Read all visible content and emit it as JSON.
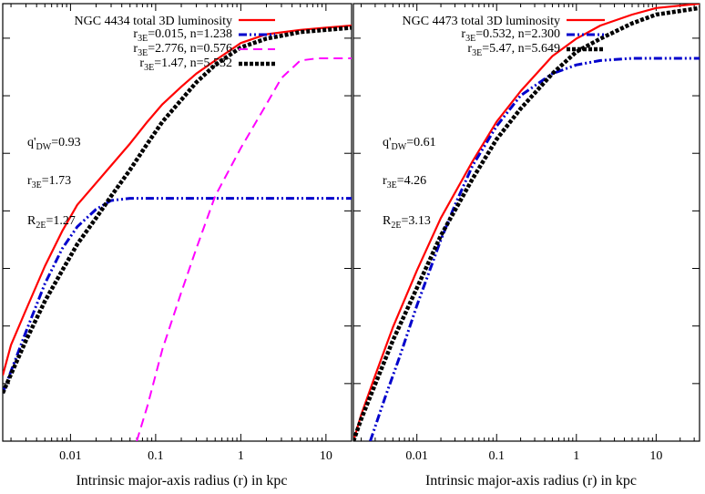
{
  "chart_data": [
    {
      "type": "line",
      "xscale": "log",
      "xlim": [
        0.0016,
        20
      ],
      "ylim": [
        0,
        1
      ],
      "xlabel": "Intrinsic major-axis radius (r) in kpc",
      "xticks": [
        "0.01",
        "0.1",
        "1",
        "10"
      ],
      "xtick_values": [
        0.01,
        0.1,
        1,
        10
      ],
      "yticks_count": 7,
      "legend_position": "top-right",
      "series": [
        {
          "name": "NGC 4434 total 3D luminosity",
          "color": "#ff0000",
          "dash": "solid",
          "points": [
            [
              0.0016,
              0.15
            ],
            [
              0.002,
              0.22
            ],
            [
              0.003,
              0.3
            ],
            [
              0.005,
              0.4
            ],
            [
              0.008,
              0.48
            ],
            [
              0.012,
              0.54
            ],
            [
              0.02,
              0.59
            ],
            [
              0.03,
              0.63
            ],
            [
              0.05,
              0.68
            ],
            [
              0.08,
              0.73
            ],
            [
              0.12,
              0.77
            ],
            [
              0.2,
              0.81
            ],
            [
              0.3,
              0.84
            ],
            [
              0.5,
              0.87
            ],
            [
              1,
              0.91
            ],
            [
              2,
              0.93
            ],
            [
              5,
              0.94
            ],
            [
              10,
              0.945
            ],
            [
              20,
              0.95
            ]
          ]
        },
        {
          "name_prefix": "r",
          "name_sub": "3E",
          "name_suffix": "=0.015, n=1.238",
          "color": "#0000cc",
          "dash": "dashdotdot",
          "points": [
            [
              0.0016,
              0.11
            ],
            [
              0.003,
              0.25
            ],
            [
              0.005,
              0.36
            ],
            [
              0.008,
              0.44
            ],
            [
              0.012,
              0.49
            ],
            [
              0.02,
              0.53
            ],
            [
              0.03,
              0.55
            ],
            [
              0.05,
              0.555
            ],
            [
              0.1,
              0.555
            ],
            [
              1,
              0.555
            ],
            [
              20,
              0.555
            ]
          ]
        },
        {
          "name_prefix": "r",
          "name_sub": "3E",
          "name_suffix": "=2.776, n=0.576",
          "color": "#ff00ff",
          "dash": "dashed",
          "points": [
            [
              0.06,
              0.0
            ],
            [
              0.08,
              0.08
            ],
            [
              0.12,
              0.21
            ],
            [
              0.2,
              0.34
            ],
            [
              0.3,
              0.44
            ],
            [
              0.5,
              0.56
            ],
            [
              1,
              0.67
            ],
            [
              2,
              0.77
            ],
            [
              3,
              0.83
            ],
            [
              5,
              0.87
            ],
            [
              8,
              0.875
            ],
            [
              20,
              0.875
            ]
          ]
        },
        {
          "name_prefix": "r",
          "name_sub": "3E",
          "name_suffix": "=1.47, n=5.532",
          "color": "#000000",
          "dash": "dotted",
          "points": [
            [
              0.0016,
              0.11
            ],
            [
              0.003,
              0.23
            ],
            [
              0.005,
              0.32
            ],
            [
              0.008,
              0.39
            ],
            [
              0.012,
              0.45
            ],
            [
              0.02,
              0.51
            ],
            [
              0.03,
              0.56
            ],
            [
              0.05,
              0.62
            ],
            [
              0.08,
              0.68
            ],
            [
              0.12,
              0.73
            ],
            [
              0.2,
              0.78
            ],
            [
              0.3,
              0.82
            ],
            [
              0.5,
              0.86
            ],
            [
              1,
              0.9
            ],
            [
              2,
              0.92
            ],
            [
              5,
              0.935
            ],
            [
              10,
              0.94
            ],
            [
              20,
              0.945
            ]
          ]
        }
      ],
      "annotations": [
        {
          "prefix": "q'",
          "sub": "DW",
          "suffix": "=0.93"
        },
        {
          "prefix": "r",
          "sub": "3E",
          "suffix": "=1.73"
        },
        {
          "prefix": "R",
          "sub": "2E",
          "suffix": "=1.27"
        }
      ]
    },
    {
      "type": "line",
      "xscale": "log",
      "xlim": [
        0.0016,
        35
      ],
      "ylim": [
        0,
        1
      ],
      "xlabel": "Intrinsic major-axis radius (r) in kpc",
      "xticks": [
        "0.01",
        "0.1",
        "1",
        "10"
      ],
      "xtick_values": [
        0.01,
        0.1,
        1,
        10
      ],
      "yticks_count": 7,
      "legend_position": "top-right",
      "series": [
        {
          "name": "NGC 4473 total 3D luminosity",
          "color": "#ff0000",
          "dash": "solid",
          "points": [
            [
              0.0016,
              0.0
            ],
            [
              0.002,
              0.06
            ],
            [
              0.003,
              0.15
            ],
            [
              0.005,
              0.26
            ],
            [
              0.01,
              0.39
            ],
            [
              0.02,
              0.51
            ],
            [
              0.05,
              0.64
            ],
            [
              0.1,
              0.73
            ],
            [
              0.2,
              0.8
            ],
            [
              0.5,
              0.88
            ],
            [
              1,
              0.92
            ],
            [
              2,
              0.95
            ],
            [
              5,
              0.975
            ],
            [
              10,
              0.99
            ],
            [
              35,
              1.0
            ]
          ]
        },
        {
          "name_prefix": "r",
          "name_sub": "3E",
          "name_suffix": "=0.532, n=2.300",
          "color": "#0000cc",
          "dash": "dashdotdot",
          "points": [
            [
              0.0026,
              0.0
            ],
            [
              0.004,
              0.1
            ],
            [
              0.006,
              0.19
            ],
            [
              0.01,
              0.31
            ],
            [
              0.02,
              0.46
            ],
            [
              0.03,
              0.54
            ],
            [
              0.05,
              0.63
            ],
            [
              0.1,
              0.72
            ],
            [
              0.2,
              0.79
            ],
            [
              0.5,
              0.84
            ],
            [
              1,
              0.86
            ],
            [
              2,
              0.87
            ],
            [
              5,
              0.875
            ],
            [
              35,
              0.875
            ]
          ]
        },
        {
          "name_prefix": "r",
          "name_sub": "3E",
          "name_suffix": "=5.47, n=5.649",
          "color": "#000000",
          "dash": "dotted",
          "points": [
            [
              0.0016,
              0.0
            ],
            [
              0.002,
              0.05
            ],
            [
              0.003,
              0.13
            ],
            [
              0.005,
              0.23
            ],
            [
              0.01,
              0.35
            ],
            [
              0.02,
              0.47
            ],
            [
              0.05,
              0.6
            ],
            [
              0.1,
              0.69
            ],
            [
              0.2,
              0.76
            ],
            [
              0.5,
              0.84
            ],
            [
              1,
              0.89
            ],
            [
              2,
              0.92
            ],
            [
              5,
              0.955
            ],
            [
              10,
              0.975
            ],
            [
              35,
              0.99
            ]
          ]
        }
      ],
      "annotations": [
        {
          "prefix": "q'",
          "sub": "DW",
          "suffix": "=0.61"
        },
        {
          "prefix": "r",
          "sub": "3E",
          "suffix": "=4.26"
        },
        {
          "prefix": "R",
          "sub": "2E",
          "suffix": "=3.13"
        }
      ]
    }
  ]
}
